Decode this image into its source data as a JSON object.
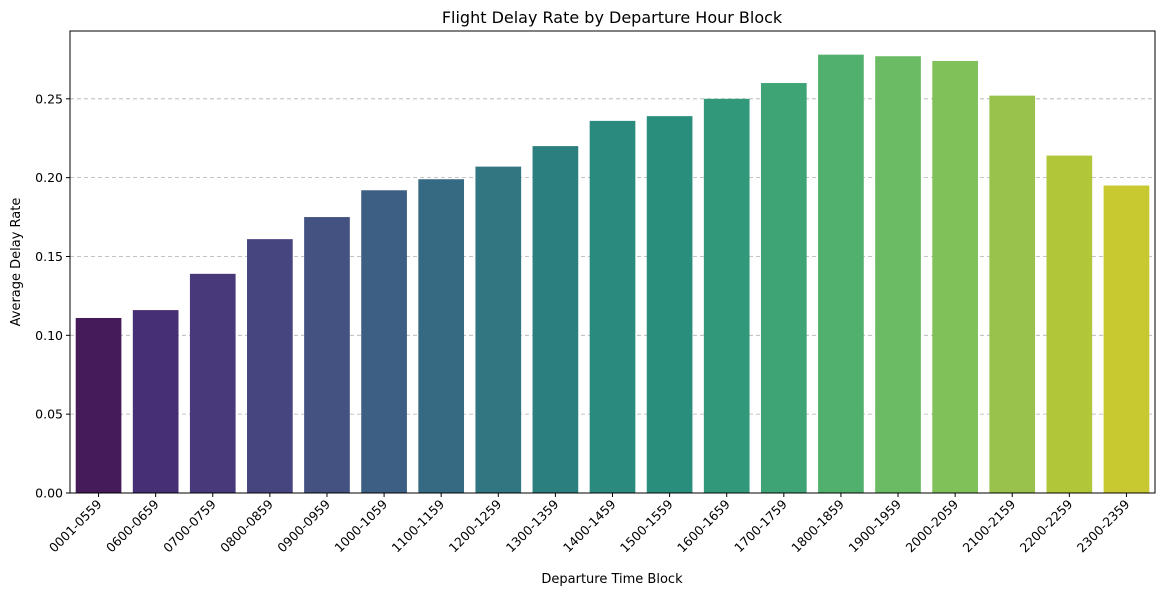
{
  "chart_data": {
    "type": "bar",
    "title": "Flight Delay Rate by Departure Hour Block",
    "xlabel": "Departure Time Block",
    "ylabel": "Average Delay Rate",
    "ylim": [
      0,
      0.293
    ],
    "yticks": [
      0.0,
      0.05,
      0.1,
      0.15,
      0.2,
      0.25
    ],
    "ytick_labels": [
      "0.00",
      "0.05",
      "0.10",
      "0.15",
      "0.20",
      "0.25"
    ],
    "grid": "y-dashed",
    "colormap": "viridis",
    "categories": [
      "0001-0559",
      "0600-0659",
      "0700-0759",
      "0800-0859",
      "0900-0959",
      "1000-1059",
      "1100-1159",
      "1200-1259",
      "1300-1359",
      "1400-1459",
      "1500-1559",
      "1600-1659",
      "1700-1759",
      "1800-1859",
      "1900-1959",
      "2000-2059",
      "2100-2159",
      "2200-2259",
      "2300-2359"
    ],
    "values": [
      0.111,
      0.116,
      0.139,
      0.161,
      0.175,
      0.192,
      0.199,
      0.207,
      0.22,
      0.236,
      0.239,
      0.25,
      0.26,
      0.278,
      0.277,
      0.274,
      0.252,
      0.214,
      0.195
    ],
    "colors": [
      "#461b5a",
      "#472f75",
      "#483a7a",
      "#474580",
      "#435281",
      "#3d5f83",
      "#366a82",
      "#317680",
      "#2c7f7f",
      "#2b8a7e",
      "#2a8e7c",
      "#31997a",
      "#3ea476",
      "#52b06f",
      "#6abb63",
      "#80c15a",
      "#98c24b",
      "#b2c639",
      "#c8c931"
    ]
  }
}
